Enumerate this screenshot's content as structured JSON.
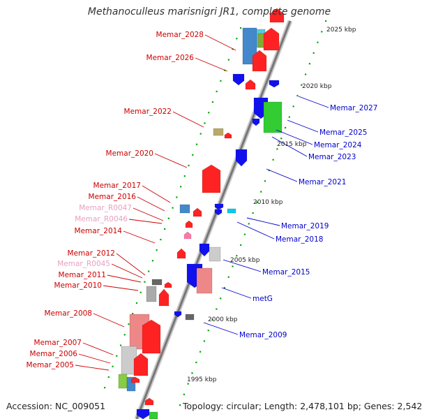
{
  "title": "Methanoculleus marisnigri JR1, complete genome",
  "footer": {
    "accession": "Accession: NC_009051",
    "topology": "Topology: circular; Length: 2,478,101 bp; Genes: 2,542"
  },
  "colors": {
    "label_red": "#cc0000",
    "label_blue": "#0000cc",
    "label_pink": "#e8a0c0",
    "backbone": "#888888",
    "tick": "#009900"
  },
  "scale_labels": [
    "2025 kbp",
    "2020 kbp",
    "2015 kbp",
    "2010 kbp",
    "2005 kbp",
    "2000 kbp",
    "1995 kbp"
  ],
  "genes_left": [
    {
      "name": "Memar_2028",
      "color": "red"
    },
    {
      "name": "Memar_2026",
      "color": "red"
    },
    {
      "name": "Memar_2022",
      "color": "red"
    },
    {
      "name": "Memar_2020",
      "color": "red"
    },
    {
      "name": "Memar_2017",
      "color": "red"
    },
    {
      "name": "Memar_2016",
      "color": "red"
    },
    {
      "name": "Memar_R0047",
      "color": "pink"
    },
    {
      "name": "Memar_R0046",
      "color": "pink"
    },
    {
      "name": "Memar_2014",
      "color": "red"
    },
    {
      "name": "Memar_2012",
      "color": "red"
    },
    {
      "name": "Memar_R0045",
      "color": "pink"
    },
    {
      "name": "Memar_2011",
      "color": "red"
    },
    {
      "name": "Memar_2010",
      "color": "red"
    },
    {
      "name": "Memar_2008",
      "color": "red"
    },
    {
      "name": "Memar_2007",
      "color": "red"
    },
    {
      "name": "Memar_2006",
      "color": "red"
    },
    {
      "name": "Memar_2005",
      "color": "red"
    }
  ],
  "genes_right": [
    {
      "name": "Memar_2027",
      "color": "blue"
    },
    {
      "name": "Memar_2025",
      "color": "blue"
    },
    {
      "name": "Memar_2024",
      "color": "blue"
    },
    {
      "name": "Memar_2023",
      "color": "blue"
    },
    {
      "name": "Memar_2021",
      "color": "blue"
    },
    {
      "name": "Memar_2019",
      "color": "blue"
    },
    {
      "name": "Memar_2018",
      "color": "blue"
    },
    {
      "name": "Memar_2015",
      "color": "blue"
    },
    {
      "name": "metG",
      "color": "blue"
    },
    {
      "name": "Memar_2009",
      "color": "blue"
    }
  ]
}
